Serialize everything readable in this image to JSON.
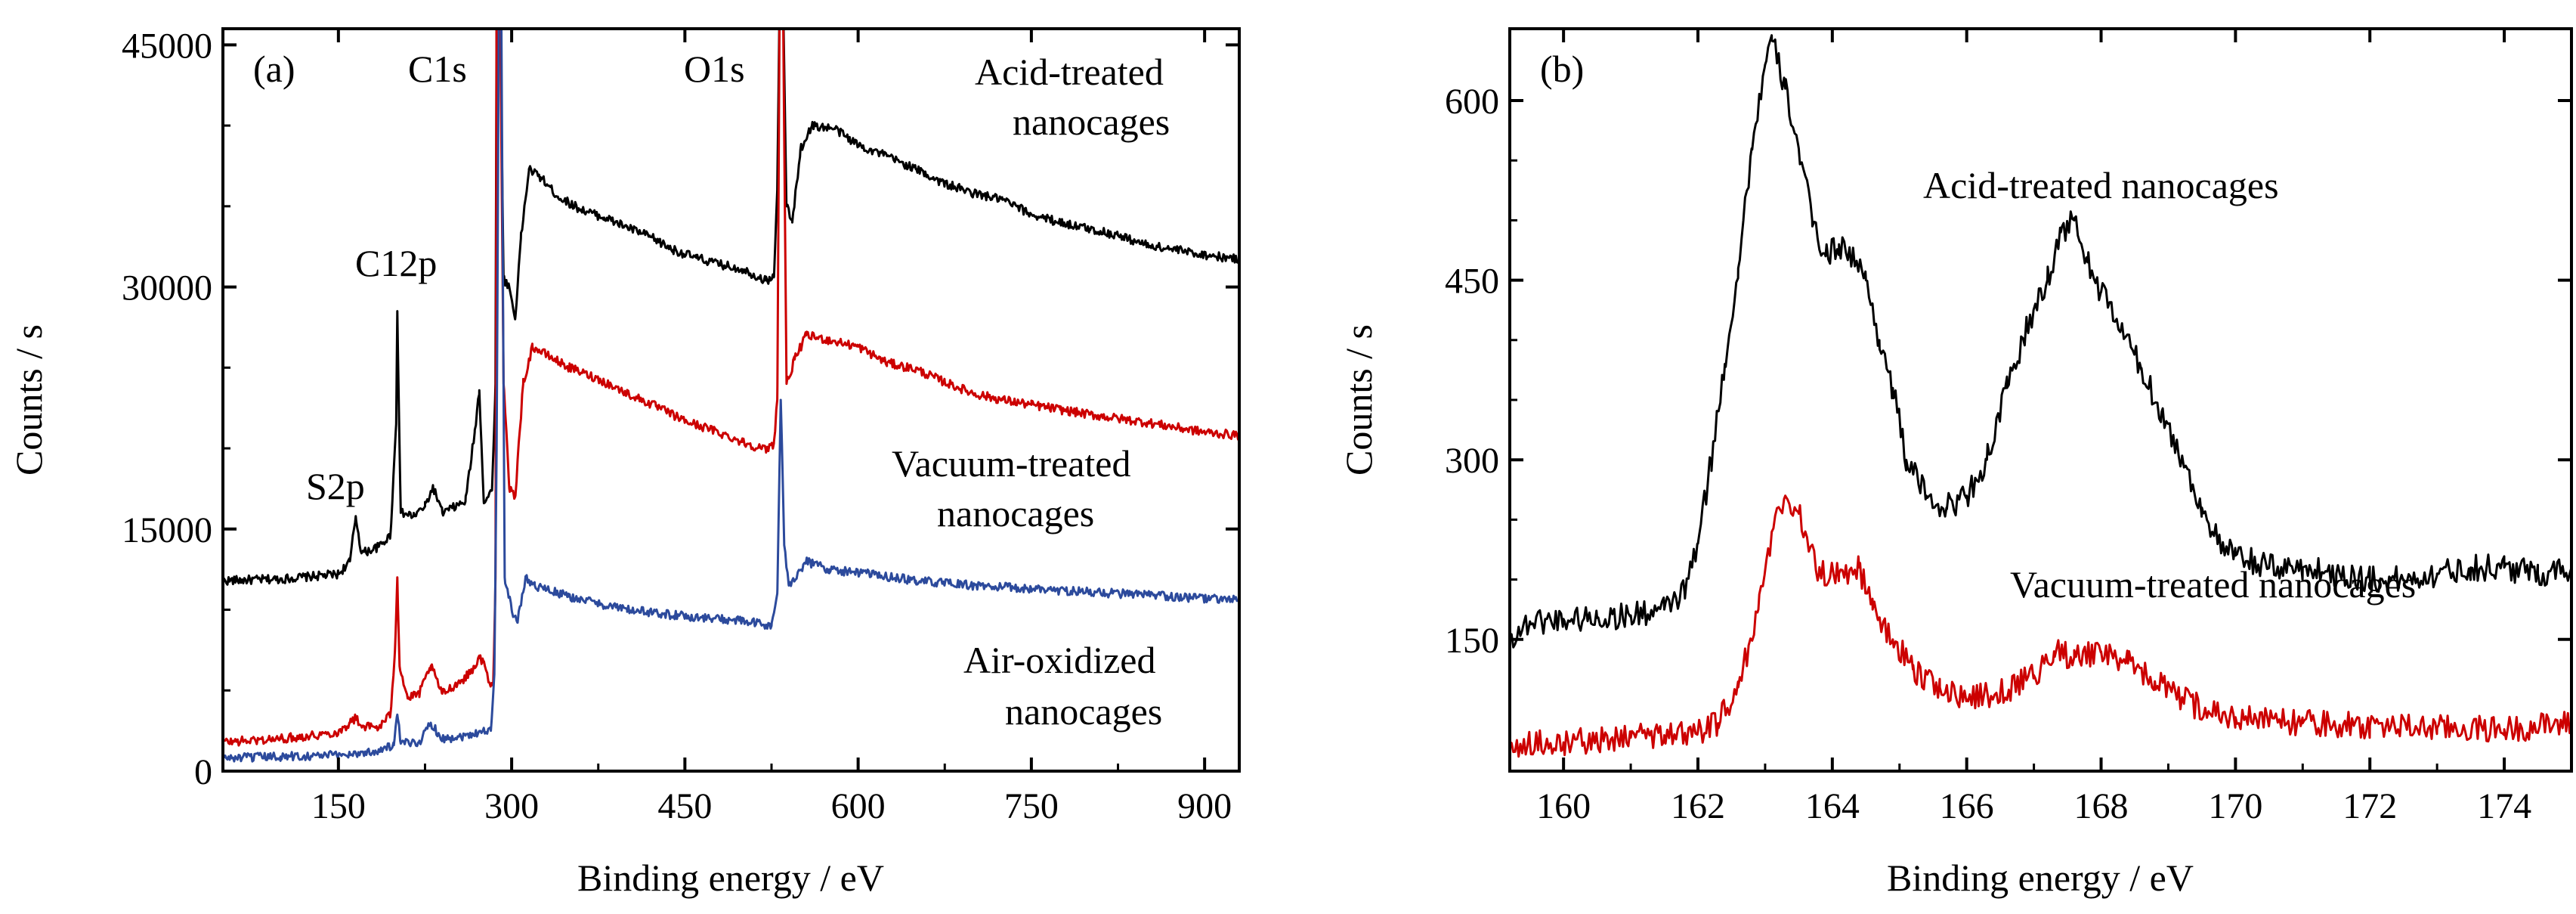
{
  "chart_data": [
    {
      "panel_label": "(a)",
      "type": "line",
      "xlabel": "Binding energy / eV",
      "ylabel": "Counts / s",
      "xlim": [
        50,
        930
      ],
      "ylim": [
        0,
        46000
      ],
      "xticks": [
        150,
        300,
        450,
        600,
        750,
        900
      ],
      "yticks": [
        0,
        15000,
        30000,
        45000
      ],
      "series": [
        {
          "name_lines": [
            "Acid-treated",
            "nanocages"
          ],
          "color": "#000000",
          "points": [
            [
              50,
              11800
            ],
            [
              100,
              11900
            ],
            [
              150,
              12200
            ],
            [
              160,
              13000
            ],
            [
              165,
              15800
            ],
            [
              170,
              13500
            ],
            [
              185,
              13900
            ],
            [
              195,
              14600
            ],
            [
              200,
              21500
            ],
            [
              201,
              28500
            ],
            [
              204,
              16000
            ],
            [
              215,
              15800
            ],
            [
              225,
              16400
            ],
            [
              232,
              17600
            ],
            [
              240,
              16000
            ],
            [
              260,
              16700
            ],
            [
              268,
              21000
            ],
            [
              272,
              23600
            ],
            [
              276,
              16600
            ],
            [
              283,
              17400
            ],
            [
              286,
              24000
            ],
            [
              287,
              48000
            ],
            [
              290,
              48000
            ],
            [
              293,
              30500
            ],
            [
              298,
              30000
            ],
            [
              303,
              28000
            ],
            [
              308,
              33000
            ],
            [
              315,
              37300
            ],
            [
              325,
              36800
            ],
            [
              340,
              35600
            ],
            [
              360,
              34800
            ],
            [
              380,
              34300
            ],
            [
              400,
              33700
            ],
            [
              420,
              33100
            ],
            [
              440,
              32300
            ],
            [
              460,
              31800
            ],
            [
              480,
              31400
            ],
            [
              500,
              31100
            ],
            [
              520,
              30400
            ],
            [
              527,
              30600
            ],
            [
              530,
              36000
            ],
            [
              532,
              48000
            ],
            [
              535,
              48000
            ],
            [
              538,
              35000
            ],
            [
              543,
              34000
            ],
            [
              550,
              38500
            ],
            [
              560,
              40000
            ],
            [
              580,
              39800
            ],
            [
              600,
              38800
            ],
            [
              625,
              38100
            ],
            [
              650,
              37300
            ],
            [
              675,
              36400
            ],
            [
              700,
              35800
            ],
            [
              725,
              35400
            ],
            [
              750,
              34500
            ],
            [
              775,
              34000
            ],
            [
              800,
              33600
            ],
            [
              825,
              33200
            ],
            [
              850,
              32600
            ],
            [
              875,
              32300
            ],
            [
              900,
              32000
            ],
            [
              930,
              31700
            ]
          ]
        },
        {
          "name_lines": [
            "Vacuum-treated",
            "nanocages"
          ],
          "color": "#cc0000",
          "points": [
            [
              50,
              1800
            ],
            [
              100,
              2000
            ],
            [
              150,
              2400
            ],
            [
              160,
              3000
            ],
            [
              165,
              3300
            ],
            [
              170,
              2800
            ],
            [
              185,
              2700
            ],
            [
              195,
              3500
            ],
            [
              199,
              7500
            ],
            [
              201,
              12000
            ],
            [
              203,
              6500
            ],
            [
              210,
              4500
            ],
            [
              220,
              4800
            ],
            [
              230,
              6500
            ],
            [
              240,
              4800
            ],
            [
              260,
              5800
            ],
            [
              268,
              6500
            ],
            [
              272,
              7000
            ],
            [
              276,
              6800
            ],
            [
              280,
              5500
            ],
            [
              284,
              5300
            ],
            [
              286,
              12000
            ],
            [
              287,
              48000
            ],
            [
              290,
              48000
            ],
            [
              293,
              24000
            ],
            [
              298,
              17500
            ],
            [
              303,
              17000
            ],
            [
              310,
              24000
            ],
            [
              318,
              26300
            ],
            [
              330,
              25800
            ],
            [
              350,
              25000
            ],
            [
              375,
              24300
            ],
            [
              400,
              23400
            ],
            [
              425,
              22600
            ],
            [
              450,
              21700
            ],
            [
              475,
              21100
            ],
            [
              500,
              20400
            ],
            [
              520,
              19900
            ],
            [
              527,
              20300
            ],
            [
              530,
              23000
            ],
            [
              532,
              47500
            ],
            [
              535,
              47500
            ],
            [
              538,
              24000
            ],
            [
              545,
              25500
            ],
            [
              555,
              27000
            ],
            [
              575,
              26700
            ],
            [
              600,
              26300
            ],
            [
              625,
              25300
            ],
            [
              650,
              24900
            ],
            [
              675,
              24100
            ],
            [
              700,
              23400
            ],
            [
              725,
              23000
            ],
            [
              750,
              22700
            ],
            [
              775,
              22400
            ],
            [
              800,
              22100
            ],
            [
              850,
              21600
            ],
            [
              900,
              21000
            ],
            [
              930,
              20800
            ]
          ]
        },
        {
          "name_lines": [
            "Air-oxidized",
            "nanocages"
          ],
          "color": "#2c4a9c",
          "points": [
            [
              50,
              800
            ],
            [
              100,
              900
            ],
            [
              150,
              1000
            ],
            [
              180,
              1200
            ],
            [
              198,
              1600
            ],
            [
              201,
              3500
            ],
            [
              204,
              1700
            ],
            [
              220,
              1800
            ],
            [
              230,
              3000
            ],
            [
              240,
              2000
            ],
            [
              260,
              2200
            ],
            [
              275,
              2500
            ],
            [
              282,
              2500
            ],
            [
              285,
              6000
            ],
            [
              287,
              20000
            ],
            [
              289,
              48000
            ],
            [
              291,
              48000
            ],
            [
              294,
              12000
            ],
            [
              300,
              10000
            ],
            [
              305,
              9200
            ],
            [
              312,
              12000
            ],
            [
              320,
              11500
            ],
            [
              350,
              10800
            ],
            [
              400,
              10000
            ],
            [
              450,
              9600
            ],
            [
              500,
              9300
            ],
            [
              525,
              9000
            ],
            [
              530,
              11000
            ],
            [
              533,
              23000
            ],
            [
              536,
              14000
            ],
            [
              540,
              11500
            ],
            [
              555,
              13000
            ],
            [
              575,
              12500
            ],
            [
              600,
              12300
            ],
            [
              650,
              11800
            ],
            [
              700,
              11500
            ],
            [
              750,
              11300
            ],
            [
              800,
              11100
            ],
            [
              850,
              10900
            ],
            [
              900,
              10700
            ],
            [
              930,
              10600
            ]
          ]
        }
      ],
      "annotations": [
        "S2p",
        "C12p",
        "C1s",
        "O1s"
      ]
    },
    {
      "panel_label": "(b)",
      "type": "line",
      "xlabel": "Binding energy / eV",
      "ylabel": "Counts / s",
      "xlim": [
        159.2,
        175
      ],
      "ylim": [
        40,
        660
      ],
      "xticks": [
        160,
        162,
        164,
        166,
        168,
        170,
        172,
        174
      ],
      "yticks": [
        150,
        300,
        450,
        600
      ],
      "series": [
        {
          "name": "Acid-treated nanocages",
          "color": "#000000",
          "points": [
            [
              159.2,
              150
            ],
            [
              159.5,
              165
            ],
            [
              160,
              167
            ],
            [
              160.5,
              168
            ],
            [
              161,
              170
            ],
            [
              161.5,
              175
            ],
            [
              161.8,
              190
            ],
            [
              162,
              230
            ],
            [
              162.2,
              300
            ],
            [
              162.4,
              380
            ],
            [
              162.6,
              460
            ],
            [
              162.8,
              560
            ],
            [
              163,
              630
            ],
            [
              163.1,
              650
            ],
            [
              163.3,
              610
            ],
            [
              163.5,
              560
            ],
            [
              163.7,
              500
            ],
            [
              163.9,
              470
            ],
            [
              164.1,
              480
            ],
            [
              164.3,
              470
            ],
            [
              164.5,
              450
            ],
            [
              164.7,
              400
            ],
            [
              164.9,
              360
            ],
            [
              165.1,
              300
            ],
            [
              165.4,
              270
            ],
            [
              165.7,
              260
            ],
            [
              166,
              270
            ],
            [
              166.3,
              300
            ],
            [
              166.6,
              360
            ],
            [
              166.9,
              410
            ],
            [
              167.2,
              450
            ],
            [
              167.4,
              490
            ],
            [
              167.6,
              500
            ],
            [
              167.8,
              465
            ],
            [
              168,
              440
            ],
            [
              168.3,
              410
            ],
            [
              168.6,
              375
            ],
            [
              168.9,
              340
            ],
            [
              169.2,
              300
            ],
            [
              169.5,
              260
            ],
            [
              169.8,
              225
            ],
            [
              170,
              220
            ],
            [
              170.5,
              210
            ],
            [
              171,
              210
            ],
            [
              171.5,
              205
            ],
            [
              172,
              200
            ],
            [
              172.5,
              200
            ],
            [
              173,
              205
            ],
            [
              173.5,
              210
            ],
            [
              174,
              210
            ],
            [
              174.5,
              205
            ],
            [
              175,
              210
            ]
          ]
        },
        {
          "name": "Vacuum-treated nanocages",
          "color": "#cc0000",
          "points": [
            [
              159.2,
              62
            ],
            [
              159.5,
              63
            ],
            [
              160,
              64
            ],
            [
              160.5,
              66
            ],
            [
              161,
              68
            ],
            [
              161.5,
              70
            ],
            [
              162,
              73
            ],
            [
              162.3,
              80
            ],
            [
              162.6,
              110
            ],
            [
              162.9,
              175
            ],
            [
              163.1,
              240
            ],
            [
              163.3,
              270
            ],
            [
              163.5,
              255
            ],
            [
              163.8,
              205
            ],
            [
              164.1,
              205
            ],
            [
              164.4,
              210
            ],
            [
              164.6,
              175
            ],
            [
              164.9,
              150
            ],
            [
              165.2,
              125
            ],
            [
              165.6,
              110
            ],
            [
              166,
              100
            ],
            [
              166.5,
              105
            ],
            [
              167,
              120
            ],
            [
              167.3,
              140
            ],
            [
              167.6,
              135
            ],
            [
              168,
              140
            ],
            [
              168.4,
              130
            ],
            [
              168.8,
              115
            ],
            [
              169.2,
              100
            ],
            [
              169.6,
              90
            ],
            [
              170,
              85
            ],
            [
              171,
              80
            ],
            [
              172,
              78
            ],
            [
              173,
              76
            ],
            [
              174,
              75
            ],
            [
              175,
              80
            ]
          ]
        }
      ]
    }
  ]
}
